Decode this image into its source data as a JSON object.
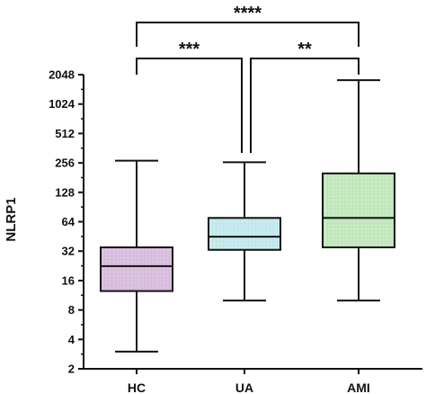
{
  "chart_data": {
    "type": "box",
    "ylabel": "NLRP1",
    "yscale": "log2",
    "ylim": [
      2,
      2048
    ],
    "yticks": [
      "2",
      "4",
      "8",
      "16",
      "32",
      "64",
      "128",
      "256",
      "512",
      "1024",
      "2048"
    ],
    "categories": [
      "HC",
      "UA",
      "AMI"
    ],
    "boxes": [
      {
        "name": "HC",
        "min": 3,
        "q1": 12.5,
        "median": 22.5,
        "q3": 35,
        "max": 270,
        "color": "#dcc3e2"
      },
      {
        "name": "UA",
        "min": 10,
        "q1": 33,
        "median": 45,
        "q3": 70,
        "max": 260,
        "color": "#c9ecef"
      },
      {
        "name": "AMI",
        "min": 10,
        "q1": 35,
        "median": 70,
        "q3": 200,
        "max": 1800,
        "color": "#c8ebc4"
      }
    ],
    "comparisons": [
      {
        "from": "HC",
        "to": "AMI",
        "label": "****"
      },
      {
        "from": "HC",
        "to": "UA",
        "label": "***"
      },
      {
        "from": "UA",
        "to": "AMI",
        "label": "**"
      }
    ]
  }
}
